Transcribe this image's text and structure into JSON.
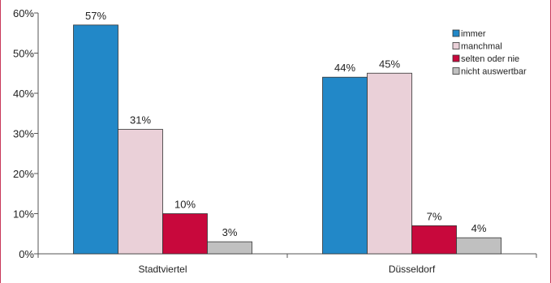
{
  "chart_data": {
    "type": "bar",
    "categories": [
      "Stadtviertel",
      "Düsseldorf"
    ],
    "series": [
      {
        "name": "immer",
        "color": "#2288c8",
        "values": [
          57,
          44
        ],
        "labels": [
          "57%",
          "44%"
        ]
      },
      {
        "name": "manchmal",
        "color": "#ead0d8",
        "values": [
          31,
          45
        ],
        "labels": [
          "31%",
          "45%"
        ]
      },
      {
        "name": "selten oder nie",
        "color": "#c8083c",
        "values": [
          10,
          7
        ],
        "labels": [
          "10%",
          "7%"
        ]
      },
      {
        "name": "nicht auswertbar",
        "color": "#c0c0c0",
        "values": [
          3,
          4
        ],
        "labels": [
          "3%",
          "4%"
        ]
      }
    ],
    "y_ticks": [
      "0%",
      "10%",
      "20%",
      "30%",
      "40%",
      "50%",
      "60%"
    ],
    "ylim": [
      0,
      60
    ],
    "title": "",
    "xlabel": "",
    "ylabel": "",
    "grid": false,
    "legend_position": "top-right"
  }
}
